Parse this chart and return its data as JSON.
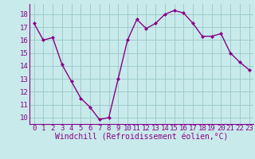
{
  "x": [
    0,
    1,
    2,
    3,
    4,
    5,
    6,
    7,
    8,
    9,
    10,
    11,
    12,
    13,
    14,
    15,
    16,
    17,
    18,
    19,
    20,
    21,
    22,
    23
  ],
  "y": [
    17.3,
    16.0,
    16.2,
    14.1,
    12.8,
    11.5,
    10.8,
    9.85,
    10.0,
    13.0,
    16.0,
    17.6,
    16.9,
    17.3,
    18.0,
    18.3,
    18.1,
    17.3,
    16.3,
    16.3,
    16.5,
    15.0,
    14.3,
    13.7
  ],
  "line_color": "#880088",
  "marker": "D",
  "marker_size": 2.0,
  "linewidth": 1.0,
  "bg_color": "#c8eaea",
  "grid_color": "#a0cccc",
  "xlabel": "Windchill (Refroidissement éolien,°C)",
  "yticks": [
    10,
    11,
    12,
    13,
    14,
    15,
    16,
    17,
    18
  ],
  "xlim": [
    -0.5,
    23.5
  ],
  "ylim": [
    9.5,
    18.8
  ],
  "tick_color": "#880088",
  "label_color": "#880088",
  "xlabel_fontsize": 7.0,
  "tick_fontsize": 6.5
}
